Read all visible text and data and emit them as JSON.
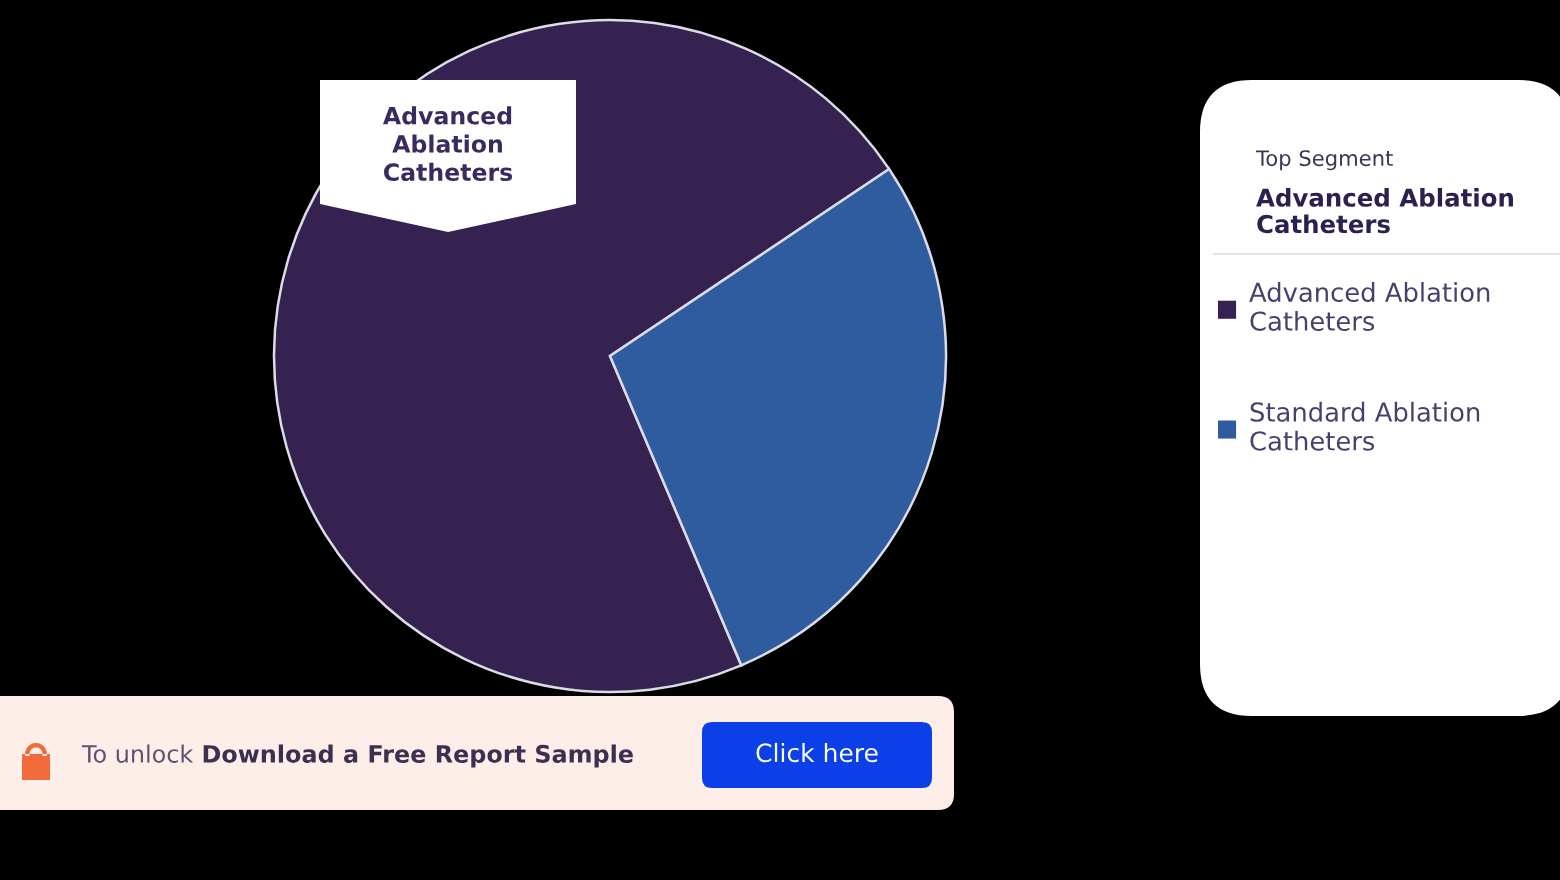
{
  "chart_data": {
    "type": "pie",
    "categories": [
      "Advanced Ablation Catheters",
      "Standard Ablation Catheters"
    ],
    "values": [
      72,
      28
    ],
    "colors": [
      "#352250",
      "#2e5c9f"
    ],
    "legend": "right",
    "annotations": [
      "Advanced Ablation Catheters",
      "Top Segment",
      "Advanced Ablation Catheters",
      "To unlock",
      "Download a Free Report Sample",
      "Click here"
    ]
  }
}
